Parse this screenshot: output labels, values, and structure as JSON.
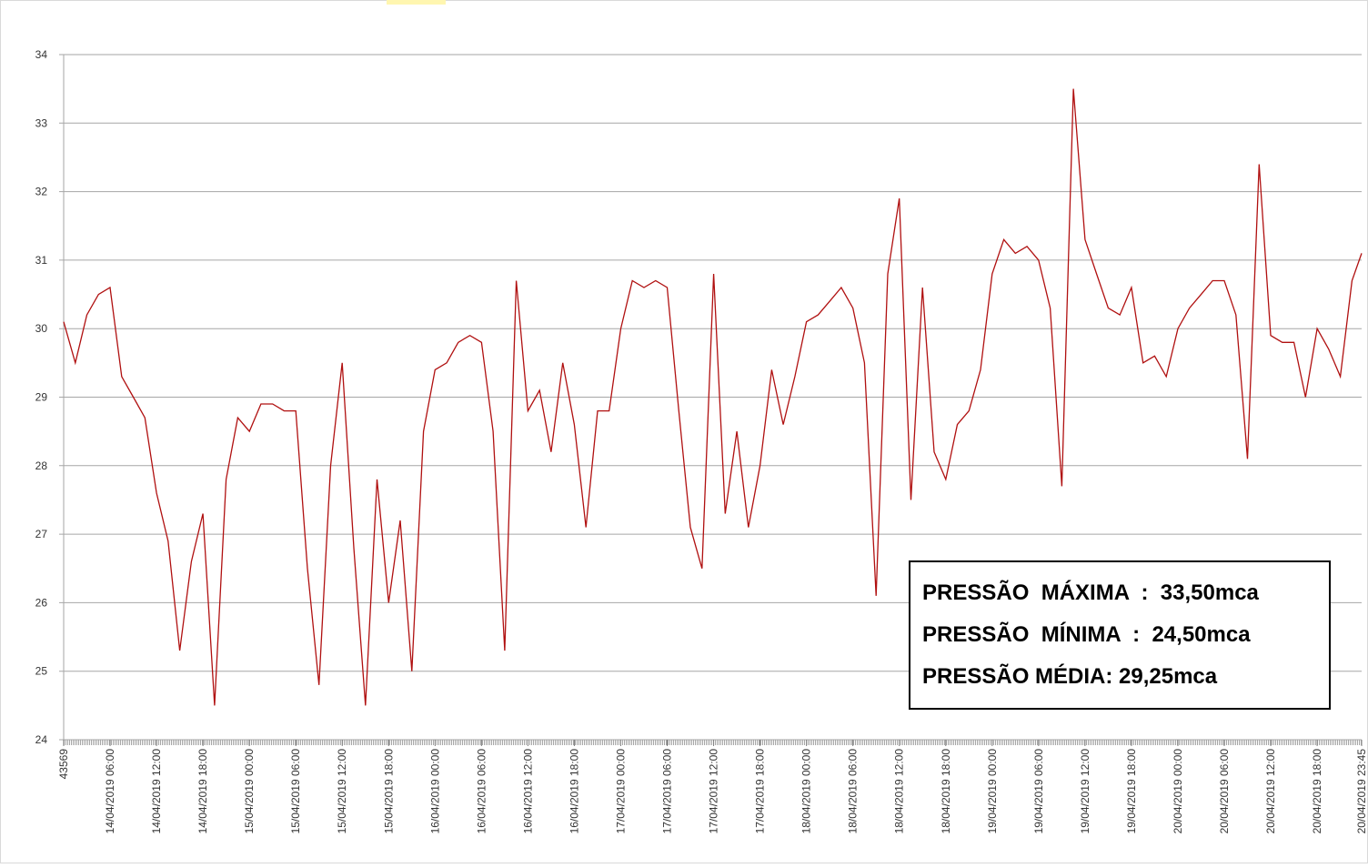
{
  "chart_data": {
    "type": "line",
    "x": [
      "14/04/2019 00:00",
      "14/04/2019 01:30",
      "14/04/2019 03:00",
      "14/04/2019 04:30",
      "14/04/2019 06:00",
      "14/04/2019 07:30",
      "14/04/2019 09:00",
      "14/04/2019 10:30",
      "14/04/2019 12:00",
      "14/04/2019 13:30",
      "14/04/2019 15:00",
      "14/04/2019 16:30",
      "14/04/2019 18:00",
      "14/04/2019 19:30",
      "14/04/2019 21:00",
      "14/04/2019 22:30",
      "15/04/2019 00:00",
      "15/04/2019 01:30",
      "15/04/2019 03:00",
      "15/04/2019 04:30",
      "15/04/2019 06:00",
      "15/04/2019 07:30",
      "15/04/2019 09:00",
      "15/04/2019 10:30",
      "15/04/2019 12:00",
      "15/04/2019 13:30",
      "15/04/2019 15:00",
      "15/04/2019 16:30",
      "15/04/2019 18:00",
      "15/04/2019 19:30",
      "15/04/2019 21:00",
      "15/04/2019 22:30",
      "16/04/2019 00:00",
      "16/04/2019 01:30",
      "16/04/2019 03:00",
      "16/04/2019 04:30",
      "16/04/2019 06:00",
      "16/04/2019 07:30",
      "16/04/2019 09:00",
      "16/04/2019 10:30",
      "16/04/2019 12:00",
      "16/04/2019 13:30",
      "16/04/2019 15:00",
      "16/04/2019 16:30",
      "16/04/2019 18:00",
      "16/04/2019 19:30",
      "16/04/2019 21:00",
      "16/04/2019 22:30",
      "17/04/2019 00:00",
      "17/04/2019 01:30",
      "17/04/2019 03:00",
      "17/04/2019 04:30",
      "17/04/2019 06:00",
      "17/04/2019 07:30",
      "17/04/2019 09:00",
      "17/04/2019 10:30",
      "17/04/2019 12:00",
      "17/04/2019 13:30",
      "17/04/2019 15:00",
      "17/04/2019 16:30",
      "17/04/2019 18:00",
      "17/04/2019 19:30",
      "17/04/2019 21:00",
      "17/04/2019 22:30",
      "18/04/2019 00:00",
      "18/04/2019 01:30",
      "18/04/2019 03:00",
      "18/04/2019 04:30",
      "18/04/2019 06:00",
      "18/04/2019 07:30",
      "18/04/2019 09:00",
      "18/04/2019 10:30",
      "18/04/2019 12:00",
      "18/04/2019 13:30",
      "18/04/2019 15:00",
      "18/04/2019 16:30",
      "18/04/2019 18:00",
      "18/04/2019 19:30",
      "18/04/2019 21:00",
      "18/04/2019 22:30",
      "19/04/2019 00:00",
      "19/04/2019 01:30",
      "19/04/2019 03:00",
      "19/04/2019 04:30",
      "19/04/2019 06:00",
      "19/04/2019 07:30",
      "19/04/2019 09:00",
      "19/04/2019 10:30",
      "19/04/2019 12:00",
      "19/04/2019 13:30",
      "19/04/2019 15:00",
      "19/04/2019 16:30",
      "19/04/2019 18:00",
      "19/04/2019 19:30",
      "19/04/2019 21:00",
      "19/04/2019 22:30",
      "20/04/2019 00:00",
      "20/04/2019 01:30",
      "20/04/2019 03:00",
      "20/04/2019 04:30",
      "20/04/2019 06:00",
      "20/04/2019 07:30",
      "20/04/2019 09:00",
      "20/04/2019 10:30",
      "20/04/2019 12:00",
      "20/04/2019 13:30",
      "20/04/2019 15:00",
      "20/04/2019 16:30",
      "20/04/2019 18:00",
      "20/04/2019 19:30",
      "20/04/2019 21:00",
      "20/04/2019 22:30",
      "20/04/2019 23:45"
    ],
    "series": [
      {
        "color": "#b01010",
        "values": [
          30.1,
          29.5,
          30.2,
          30.5,
          30.6,
          29.3,
          29.0,
          28.7,
          27.6,
          26.9,
          25.3,
          26.6,
          27.3,
          24.5,
          27.8,
          28.7,
          28.5,
          28.9,
          28.9,
          28.8,
          28.8,
          26.5,
          24.8,
          28.0,
          29.5,
          26.8,
          24.5,
          27.8,
          26.0,
          27.2,
          25.0,
          28.5,
          29.4,
          29.5,
          29.8,
          29.9,
          29.8,
          28.5,
          25.3,
          30.7,
          28.8,
          29.1,
          28.2,
          29.5,
          28.6,
          27.1,
          28.8,
          28.8,
          30.0,
          30.7,
          30.6,
          30.7,
          30.6,
          28.8,
          27.1,
          26.5,
          30.8,
          27.3,
          28.5,
          27.1,
          28.0,
          29.4,
          28.6,
          29.3,
          30.1,
          30.2,
          30.4,
          30.6,
          30.3,
          29.5,
          26.1,
          30.8,
          31.9,
          27.5,
          30.6,
          28.2,
          27.8,
          28.6,
          28.8,
          29.4,
          30.8,
          31.3,
          31.1,
          31.2,
          31.0,
          30.3,
          27.7,
          33.5,
          31.3,
          30.8,
          30.3,
          30.2,
          30.6,
          29.5,
          29.6,
          29.3,
          30.0,
          30.3,
          30.5,
          30.7,
          30.7,
          30.2,
          28.1,
          32.4,
          29.9,
          29.8,
          29.8,
          29.0,
          30.0,
          29.7,
          29.3,
          30.7,
          31.1
        ]
      }
    ],
    "xlim": [
      "14/04/2019 00:00",
      "20/04/2019 23:45"
    ],
    "xticks": [
      {
        "value": "14/04/2019 00:00",
        "label": "43569"
      },
      "14/04/2019 06:00",
      "14/04/2019 12:00",
      "14/04/2019 18:00",
      "15/04/2019 00:00",
      "15/04/2019 06:00",
      "15/04/2019 12:00",
      "15/04/2019 18:00",
      "16/04/2019 00:00",
      "16/04/2019 06:00",
      "16/04/2019 12:00",
      "16/04/2019 18:00",
      "17/04/2019 00:00",
      "17/04/2019 06:00",
      "17/04/2019 12:00",
      "17/04/2019 18:00",
      "18/04/2019 00:00",
      "18/04/2019 06:00",
      "18/04/2019 12:00",
      "18/04/2019 18:00",
      "19/04/2019 00:00",
      "19/04/2019 06:00",
      "19/04/2019 12:00",
      "19/04/2019 18:00",
      "20/04/2019 00:00",
      "20/04/2019 06:00",
      "20/04/2019 12:00",
      "20/04/2019 18:00",
      "20/04/2019 23:45"
    ],
    "ylim": [
      24,
      34
    ],
    "yticks": [
      24,
      25,
      26,
      27,
      28,
      29,
      30,
      31,
      32,
      33,
      34
    ],
    "grid": true,
    "annotations": [
      "PRESSÃO  MÁXIMA  :  33,50mca",
      "PRESSÃO  MÍNIMA  :  24,50mca",
      "PRESSÃO MÉDIA: 29,25mca"
    ]
  }
}
